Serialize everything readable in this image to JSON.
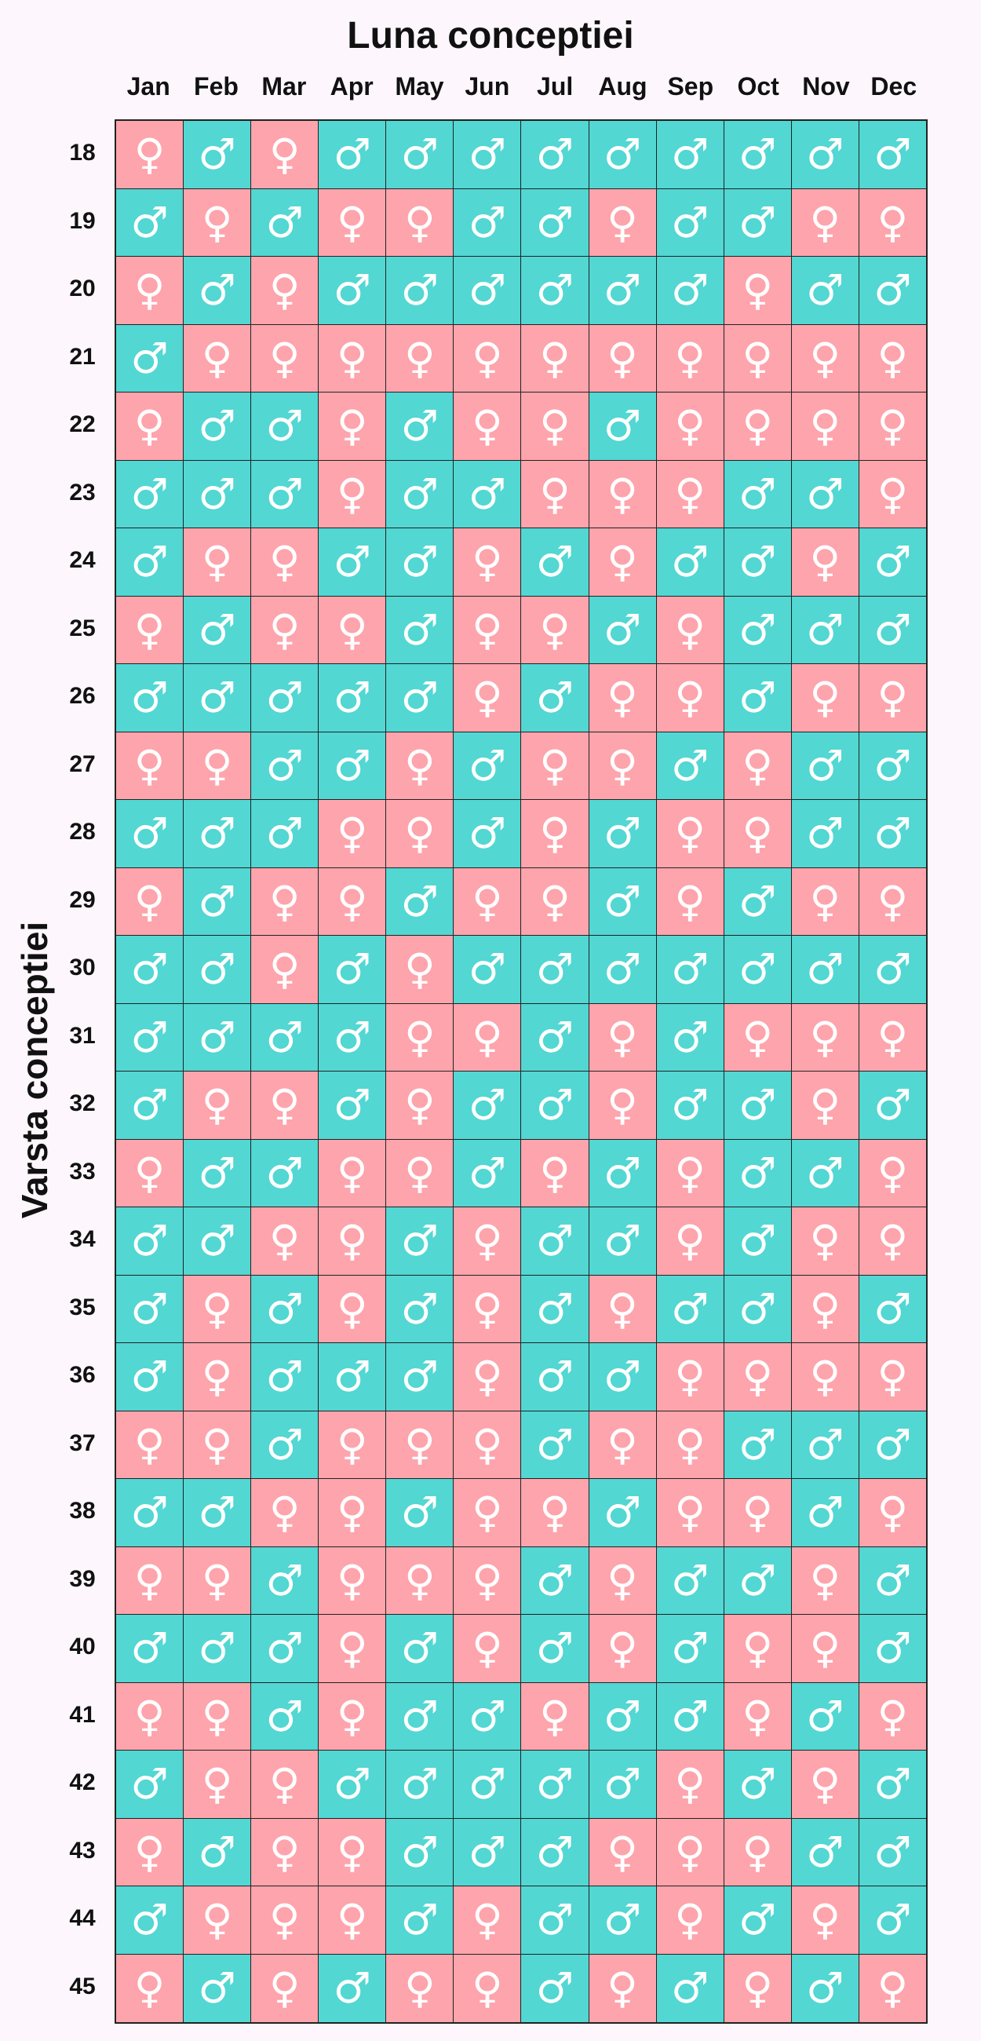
{
  "title": "Luna conceptiei",
  "ylabel": "Varsta conceptiei",
  "legend": {
    "F": "♀",
    "M": "♂",
    "F_color": "#fea4ac",
    "M_color": "#52d7d3"
  },
  "chart_data": {
    "type": "table",
    "title": "Luna conceptiei",
    "xlabel": "Luna conceptiei",
    "ylabel": "Varsta conceptiei",
    "columns": [
      "Jan",
      "Feb",
      "Mar",
      "Apr",
      "May",
      "Jun",
      "Jul",
      "Aug",
      "Sep",
      "Oct",
      "Nov",
      "Dec"
    ],
    "rows": [
      {
        "age": 18,
        "values": [
          "F",
          "M",
          "F",
          "M",
          "M",
          "M",
          "M",
          "M",
          "M",
          "M",
          "M",
          "M"
        ]
      },
      {
        "age": 19,
        "values": [
          "M",
          "F",
          "M",
          "F",
          "F",
          "M",
          "M",
          "F",
          "M",
          "M",
          "F",
          "F"
        ]
      },
      {
        "age": 20,
        "values": [
          "F",
          "M",
          "F",
          "M",
          "M",
          "M",
          "M",
          "M",
          "M",
          "F",
          "M",
          "M"
        ]
      },
      {
        "age": 21,
        "values": [
          "M",
          "F",
          "F",
          "F",
          "F",
          "F",
          "F",
          "F",
          "F",
          "F",
          "F",
          "F"
        ]
      },
      {
        "age": 22,
        "values": [
          "F",
          "M",
          "M",
          "F",
          "M",
          "F",
          "F",
          "M",
          "F",
          "F",
          "F",
          "F"
        ]
      },
      {
        "age": 23,
        "values": [
          "M",
          "M",
          "M",
          "F",
          "M",
          "M",
          "F",
          "F",
          "F",
          "M",
          "M",
          "F"
        ]
      },
      {
        "age": 24,
        "values": [
          "M",
          "F",
          "F",
          "M",
          "M",
          "F",
          "M",
          "F",
          "M",
          "M",
          "F",
          "M"
        ]
      },
      {
        "age": 25,
        "values": [
          "F",
          "M",
          "F",
          "F",
          "M",
          "F",
          "F",
          "M",
          "F",
          "M",
          "M",
          "M"
        ]
      },
      {
        "age": 26,
        "values": [
          "M",
          "M",
          "M",
          "M",
          "M",
          "F",
          "M",
          "F",
          "F",
          "M",
          "F",
          "F"
        ]
      },
      {
        "age": 27,
        "values": [
          "F",
          "F",
          "M",
          "M",
          "F",
          "M",
          "F",
          "F",
          "M",
          "F",
          "M",
          "M"
        ]
      },
      {
        "age": 28,
        "values": [
          "M",
          "M",
          "M",
          "F",
          "F",
          "M",
          "F",
          "M",
          "F",
          "F",
          "M",
          "M"
        ]
      },
      {
        "age": 29,
        "values": [
          "F",
          "M",
          "F",
          "F",
          "M",
          "F",
          "F",
          "M",
          "F",
          "M",
          "F",
          "F"
        ]
      },
      {
        "age": 30,
        "values": [
          "M",
          "M",
          "F",
          "M",
          "F",
          "M",
          "M",
          "M",
          "M",
          "M",
          "M",
          "M"
        ]
      },
      {
        "age": 31,
        "values": [
          "M",
          "M",
          "M",
          "M",
          "F",
          "F",
          "M",
          "F",
          "M",
          "F",
          "F",
          "F"
        ]
      },
      {
        "age": 32,
        "values": [
          "M",
          "F",
          "F",
          "M",
          "F",
          "M",
          "M",
          "F",
          "M",
          "M",
          "F",
          "M"
        ]
      },
      {
        "age": 33,
        "values": [
          "F",
          "M",
          "M",
          "F",
          "F",
          "M",
          "F",
          "M",
          "F",
          "M",
          "M",
          "F"
        ]
      },
      {
        "age": 34,
        "values": [
          "M",
          "M",
          "F",
          "F",
          "M",
          "F",
          "M",
          "M",
          "F",
          "M",
          "F",
          "F"
        ]
      },
      {
        "age": 35,
        "values": [
          "M",
          "F",
          "M",
          "F",
          "M",
          "F",
          "M",
          "F",
          "M",
          "M",
          "F",
          "M"
        ]
      },
      {
        "age": 36,
        "values": [
          "M",
          "F",
          "M",
          "M",
          "M",
          "F",
          "M",
          "M",
          "F",
          "F",
          "F",
          "F"
        ]
      },
      {
        "age": 37,
        "values": [
          "F",
          "F",
          "M",
          "F",
          "F",
          "F",
          "M",
          "F",
          "F",
          "M",
          "M",
          "M"
        ]
      },
      {
        "age": 38,
        "values": [
          "M",
          "M",
          "F",
          "F",
          "M",
          "F",
          "F",
          "M",
          "F",
          "F",
          "M",
          "F"
        ]
      },
      {
        "age": 39,
        "values": [
          "F",
          "F",
          "M",
          "F",
          "F",
          "F",
          "M",
          "F",
          "M",
          "M",
          "F",
          "M"
        ]
      },
      {
        "age": 40,
        "values": [
          "M",
          "M",
          "M",
          "F",
          "M",
          "F",
          "M",
          "F",
          "M",
          "F",
          "F",
          "M"
        ]
      },
      {
        "age": 41,
        "values": [
          "F",
          "F",
          "M",
          "F",
          "M",
          "M",
          "F",
          "M",
          "M",
          "F",
          "M",
          "F"
        ]
      },
      {
        "age": 42,
        "values": [
          "M",
          "F",
          "F",
          "M",
          "M",
          "M",
          "M",
          "M",
          "F",
          "M",
          "F",
          "M"
        ]
      },
      {
        "age": 43,
        "values": [
          "F",
          "M",
          "F",
          "F",
          "M",
          "M",
          "M",
          "F",
          "F",
          "F",
          "M",
          "M"
        ]
      },
      {
        "age": 44,
        "values": [
          "M",
          "F",
          "F",
          "F",
          "M",
          "F",
          "M",
          "M",
          "F",
          "M",
          "F",
          "M"
        ]
      },
      {
        "age": 45,
        "values": [
          "F",
          "M",
          "F",
          "M",
          "F",
          "F",
          "M",
          "F",
          "M",
          "F",
          "M",
          "F"
        ]
      }
    ]
  }
}
